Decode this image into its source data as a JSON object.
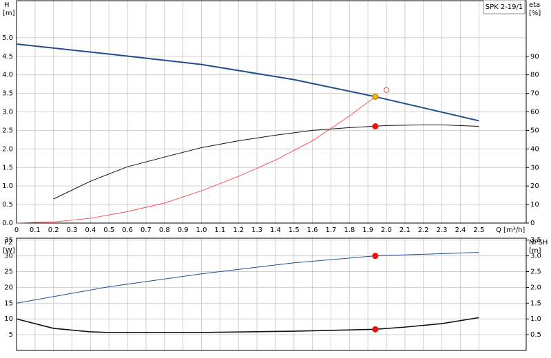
{
  "chart_data": [
    {
      "type": "line",
      "annotation": "SPK 2-19/1",
      "xlabel": "Q [m³/h]",
      "ylabel": "H",
      "yunit": "[m]",
      "y2label": "eta",
      "y2unit": "[%]",
      "xlim": [
        0,
        2.756
      ],
      "ylim": [
        0,
        6
      ],
      "y2lim": [
        0,
        120
      ],
      "grid": true,
      "xticks": [
        0,
        0.1,
        0.2,
        0.3,
        0.4,
        0.5,
        0.6,
        0.7,
        0.8,
        0.9,
        {
          "value": 1,
          "label": "1.0"
        },
        1.1,
        1.2,
        1.3,
        1.4,
        1.5,
        1.6,
        1.7,
        1.8,
        1.9,
        {
          "value": 2,
          "label": "2.0"
        },
        2.1,
        2.2,
        2.3,
        2.4,
        2.5
      ],
      "yticks": [
        {
          "value": 0,
          "label": "0.0"
        },
        0.5,
        {
          "value": 1,
          "label": "1.0"
        },
        1.5,
        {
          "value": 2,
          "label": "2.0"
        },
        2.5,
        {
          "value": 3,
          "label": "3.0"
        },
        3.5,
        {
          "value": 4,
          "label": "4.0"
        },
        4.5,
        {
          "value": 5,
          "label": "5.0"
        }
      ],
      "y2ticks": [
        0,
        10,
        20,
        30,
        40,
        50,
        60,
        70,
        80,
        90
      ],
      "series": [
        {
          "color": "#1f4e8c",
          "width": 2,
          "x": [
            0,
            0.5,
            1.0,
            1.5,
            1.94,
            2.5
          ],
          "values": [
            4.83,
            4.56,
            4.28,
            3.87,
            3.41,
            2.76
          ]
        },
        {
          "color": "#ff3333",
          "width": 0.8,
          "x": [
            0,
            0.2,
            0.4,
            0.6,
            0.8,
            1.0,
            1.2,
            1.4,
            1.6,
            1.8,
            1.94
          ],
          "values": [
            0,
            0.03,
            0.13,
            0.31,
            0.54,
            0.87,
            1.26,
            1.7,
            2.22,
            2.89,
            3.41
          ]
        },
        {
          "color": "#111111",
          "width": 1,
          "axis": "y2",
          "x": [
            0.2,
            0.4,
            0.6,
            0.8,
            1.0,
            1.2,
            1.4,
            1.6,
            1.8,
            2.0,
            2.2,
            2.3,
            2.5
          ],
          "values": [
            13,
            22.6,
            30.4,
            35.6,
            40.7,
            44.4,
            47.4,
            50,
            51.5,
            52.6,
            53,
            53,
            52.2
          ]
        }
      ],
      "markers": [
        {
          "x": 1.94,
          "y": 3.41,
          "color": "#f5b800",
          "filled": true
        },
        {
          "x": 1.94,
          "y": 52.2,
          "color": "#ee1111",
          "filled": true,
          "axis": "y2"
        },
        {
          "x": 2.0,
          "y": 3.59,
          "color": "#ee4444",
          "filled": false
        }
      ]
    },
    {
      "type": "line",
      "ylabel": "P2",
      "yunit": "[W]",
      "y2label": "NPSH",
      "y2unit": "[m]",
      "xlim": [
        0,
        2.756
      ],
      "ylim": [
        0,
        35.6
      ],
      "y2lim": [
        0,
        3.56
      ],
      "grid": true,
      "xticks": [
        0,
        0.1,
        0.2,
        0.3,
        0.4,
        0.5,
        0.6,
        0.7,
        0.8,
        0.9,
        1,
        1.1,
        1.2,
        1.3,
        1.4,
        1.5,
        1.6,
        1.7,
        1.8,
        1.9,
        2,
        2.1,
        2.2,
        2.3,
        2.4,
        2.5
      ],
      "yticks": [
        5,
        10,
        15,
        20,
        25,
        30,
        35
      ],
      "y2ticks": [
        0.5,
        {
          "value": 1,
          "label": "1.0"
        },
        1.5,
        {
          "value": 2,
          "label": "2.0"
        },
        2.5,
        {
          "value": 3,
          "label": "3.0"
        },
        3.5
      ],
      "series": [
        {
          "color": "#1f4e8c",
          "width": 1,
          "x": [
            0,
            0.5,
            1.0,
            1.5,
            1.94,
            2.5
          ],
          "values": [
            15,
            20.2,
            24.3,
            27.8,
            30,
            31.1
          ]
        },
        {
          "color": "#111111",
          "width": 1.6,
          "axis": "y2",
          "x": [
            0,
            0.2,
            0.4,
            0.5,
            1.0,
            1.5,
            1.94,
            2.1,
            2.3,
            2.5
          ],
          "values": [
            1.0,
            0.7,
            0.59,
            0.57,
            0.57,
            0.61,
            0.67,
            0.74,
            0.85,
            1.04
          ]
        }
      ],
      "markers": [
        {
          "x": 1.94,
          "y": 30,
          "color": "#ee1111",
          "filled": true
        },
        {
          "x": 1.94,
          "y": 0.67,
          "color": "#ee1111",
          "filled": true,
          "axis": "y2"
        }
      ]
    }
  ]
}
